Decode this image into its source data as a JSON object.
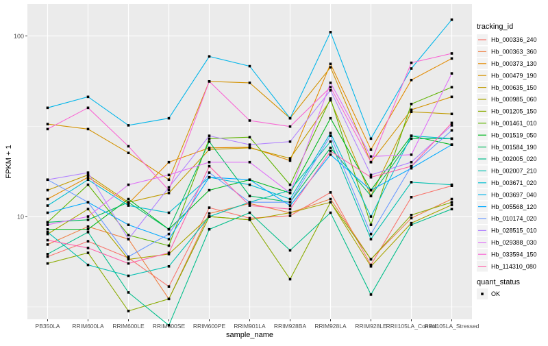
{
  "chart_data": {
    "type": "line",
    "xlabel": "sample_name",
    "ylabel": "FPKM + 1",
    "y_scale": "log10",
    "ylim": [
      2.7,
      150
    ],
    "y_ticks": [
      10,
      100
    ],
    "y_tick_labels": [
      "10",
      "100"
    ],
    "categories": [
      "PB350LA",
      "RRIM600LA",
      "RRIM600LE",
      "RRIM600SE",
      "RRIM600PE",
      "RRIM901LA",
      "RRIM928BA",
      "RRIM928LA",
      "RRIM928LE",
      "RRII105LA_Control",
      "RRII105LA_Stressed"
    ],
    "grid": true,
    "background": "#ebebeb",
    "legend": {
      "title": "tracking_id",
      "position": "right"
    },
    "shape_legend": {
      "title": "quant_status",
      "entries": [
        "OK"
      ]
    },
    "series": [
      {
        "name": "Hb_000336_240",
        "color": "#F8766D",
        "values": [
          6.0,
          7.3,
          5.9,
          4.1,
          11.2,
          9.8,
          10.1,
          13.6,
          5.4,
          12.8,
          14.8
        ]
      },
      {
        "name": "Hb_000363_360",
        "color": "#EE8044",
        "values": [
          7.0,
          8.8,
          7.5,
          3.5,
          10.4,
          11.8,
          10.5,
          12.5,
          5.8,
          9.8,
          12.5
        ]
      },
      {
        "name": "Hb_000373_130",
        "color": "#E28A00",
        "values": [
          12.5,
          16.5,
          11.8,
          20.0,
          24.0,
          24.2,
          20.4,
          70.0,
          23.5,
          57.0,
          75.0
        ]
      },
      {
        "name": "Hb_000479_190",
        "color": "#D39200",
        "values": [
          32.5,
          30.5,
          22.5,
          16.0,
          56.0,
          55.0,
          35.0,
          67.0,
          20.0,
          39.0,
          46.0
        ]
      },
      {
        "name": "Hb_000635_150",
        "color": "#C09B00",
        "values": [
          14.0,
          17.0,
          12.0,
          13.5,
          23.5,
          24.0,
          21.0,
          44.0,
          13.0,
          38.0,
          37.0
        ]
      },
      {
        "name": "Hb_000985_060",
        "color": "#A9A400",
        "values": [
          8.0,
          11.0,
          5.8,
          6.2,
          10.0,
          9.6,
          10.5,
          12.0,
          5.3,
          9.2,
          11.6
        ]
      },
      {
        "name": "Hb_001205_150",
        "color": "#8AAB00",
        "values": [
          5.5,
          6.3,
          3.0,
          3.5,
          10.0,
          9.6,
          4.5,
          12.0,
          5.8,
          10.2,
          12.0
        ]
      },
      {
        "name": "Hb_001461_010",
        "color": "#5EB300",
        "values": [
          9.3,
          15.0,
          7.9,
          6.9,
          27.0,
          27.5,
          15.0,
          45.0,
          9.0,
          42.0,
          52.0
        ]
      },
      {
        "name": "Hb_001519_050",
        "color": "#00B81F",
        "values": [
          8.5,
          8.5,
          12.5,
          8.5,
          14.0,
          16.0,
          13.5,
          35.0,
          14.0,
          28.0,
          25.0
        ]
      },
      {
        "name": "Hb_001584_190",
        "color": "#00BB5D",
        "values": [
          9.3,
          9.6,
          12.0,
          8.5,
          26.0,
          13.0,
          12.0,
          24.0,
          13.0,
          27.0,
          27.0
        ]
      },
      {
        "name": "Hb_002005_020",
        "color": "#00BE8A",
        "values": [
          6.2,
          8.2,
          3.8,
          2.5,
          8.5,
          10.5,
          6.5,
          10.5,
          3.7,
          9.0,
          11.0
        ]
      },
      {
        "name": "Hb_002007_210",
        "color": "#00BFB0",
        "values": [
          8.2,
          5.4,
          4.7,
          5.3,
          10.0,
          12.0,
          14.0,
          26.0,
          7.5,
          15.5,
          15.0
        ]
      },
      {
        "name": "Hb_003671_020",
        "color": "#00BDD0",
        "values": [
          11.5,
          16.0,
          11.5,
          10.5,
          16.5,
          15.0,
          12.5,
          29.0,
          10.0,
          28.0,
          27.0
        ]
      },
      {
        "name": "Hb_003697_040",
        "color": "#00B5EA",
        "values": [
          40.0,
          46.0,
          32.0,
          35.0,
          77.0,
          68.0,
          35.0,
          105.0,
          27.0,
          66.0,
          123.0
        ]
      },
      {
        "name": "Hb_005568_120",
        "color": "#00A9FF",
        "values": [
          10.5,
          12.0,
          9.0,
          7.5,
          16.5,
          16.0,
          11.5,
          22.0,
          14.0,
          18.5,
          25.0
        ]
      },
      {
        "name": "Hb_010174_020",
        "color": "#6B9AFF",
        "values": [
          16.0,
          12.0,
          6.0,
          8.0,
          17.5,
          12.0,
          12.0,
          28.0,
          8.0,
          19.0,
          30.0
        ]
      },
      {
        "name": "Hb_028515_010",
        "color": "#B385FF",
        "values": [
          16.0,
          17.5,
          7.5,
          14.5,
          28.0,
          25.0,
          26.0,
          50.0,
          17.0,
          20.0,
          32.0
        ]
      },
      {
        "name": "Hb_029388_030",
        "color": "#DF70F8",
        "values": [
          9.0,
          10.0,
          15.0,
          17.0,
          20.0,
          20.0,
          13.5,
          55.0,
          21.5,
          22.0,
          62.0
        ]
      },
      {
        "name": "Hb_033594_150",
        "color": "#F966D4",
        "values": [
          30.5,
          40.0,
          24.5,
          14.0,
          56.0,
          34.0,
          31.5,
          52.0,
          20.0,
          71.0,
          80.0
        ]
      },
      {
        "name": "Hb_114310_080",
        "color": "#FF61A9",
        "values": [
          7.4,
          6.7,
          5.5,
          6.3,
          19.0,
          11.5,
          11.0,
          23.0,
          16.5,
          19.0,
          33.0
        ]
      }
    ]
  }
}
